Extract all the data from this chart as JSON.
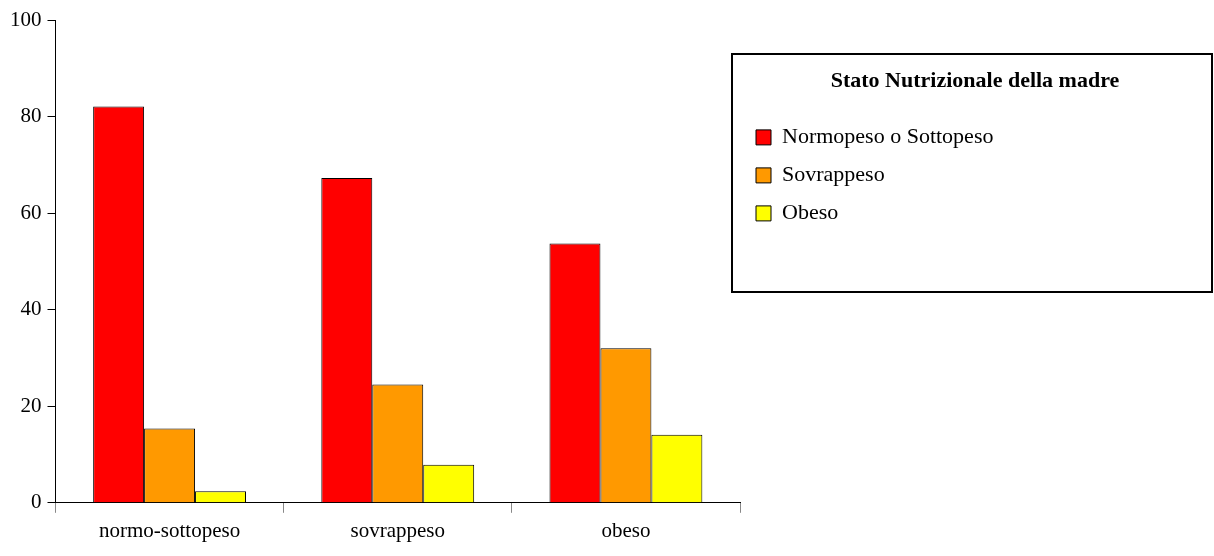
{
  "chart_data": {
    "type": "bar",
    "categories": [
      "normo-sottopeso",
      "sovrappeso",
      "obeso"
    ],
    "legend_title": "Stato Nutrizionale della madre",
    "series": [
      {
        "name": "Normopeso o Sottopeso",
        "color": "#ff0000",
        "values": [
          82.1,
          67.3,
          53.7
        ]
      },
      {
        "name": "Sovrappeso",
        "color": "#ff9900",
        "values": [
          15.4,
          24.5,
          32.0
        ]
      },
      {
        "name": "Obeso",
        "color": "#ffff00",
        "values": [
          2.4,
          7.9,
          14.1
        ]
      }
    ],
    "ylim": [
      0,
      100
    ],
    "yticks": [
      0,
      20,
      40,
      60,
      80,
      100
    ],
    "grid": false,
    "legend": "right"
  }
}
